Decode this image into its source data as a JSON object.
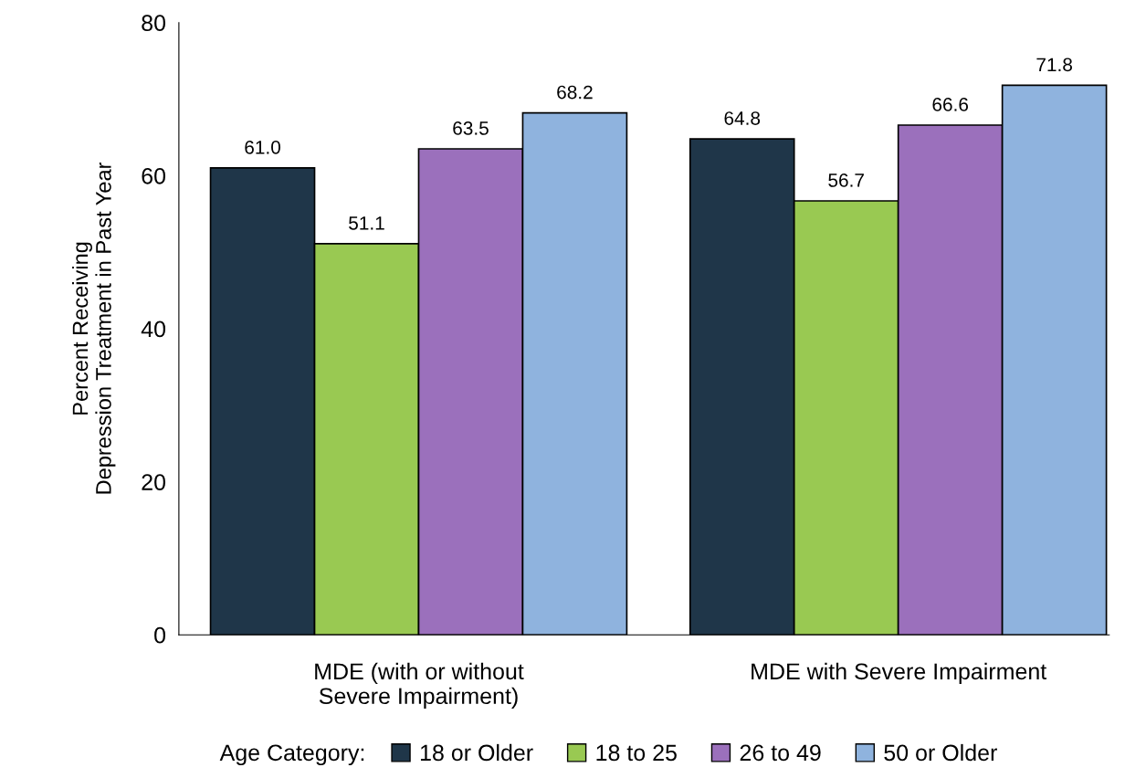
{
  "chart_data": {
    "type": "bar",
    "ylabel": "Percent Receiving\nDepression Treatment in Past Year",
    "categories": [
      "MDE (with or without\nSevere Impairment)",
      "MDE with Severe Impairment"
    ],
    "series": [
      {
        "name": "18 or Older",
        "color": "#1f3649",
        "values": [
          61.0,
          64.8
        ],
        "value_labels": [
          "61.0",
          "64.8"
        ]
      },
      {
        "name": "18 to 25",
        "color": "#99c952",
        "values": [
          51.1,
          56.7
        ],
        "value_labels": [
          "51.1",
          "56.7"
        ]
      },
      {
        "name": "26 to 49",
        "color": "#9b70bc",
        "values": [
          63.5,
          66.6
        ],
        "value_labels": [
          "63.5",
          "66.6"
        ]
      },
      {
        "name": "50 or Older",
        "color": "#8fb3de",
        "values": [
          68.2,
          71.8
        ],
        "value_labels": [
          "68.2",
          "71.8"
        ]
      }
    ],
    "legend_title": "Age Category:",
    "legend": "bottom",
    "ylim": [
      0,
      80
    ],
    "yticks": [
      0,
      20,
      40,
      60,
      80
    ],
    "grid": false
  }
}
